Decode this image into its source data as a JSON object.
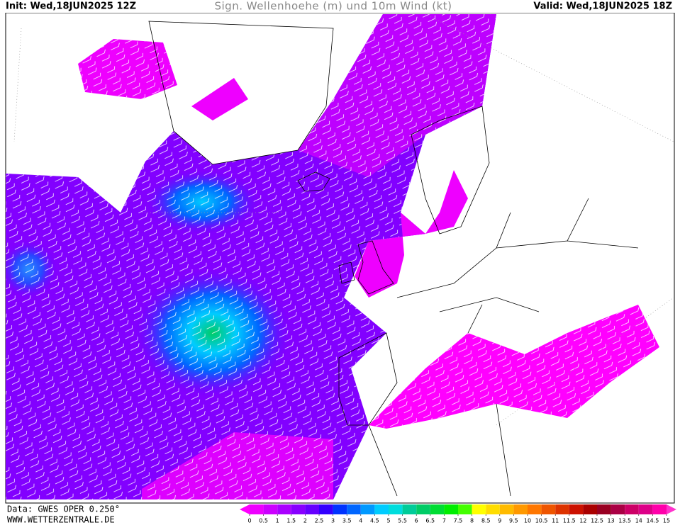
{
  "header": {
    "init": "Init: Wed,18JUN2025 12Z",
    "title": "Sign. Wellenhoehe (m) und 10m Wind (kt)",
    "valid": "Valid: Wed,18JUN2025 18Z"
  },
  "footer": {
    "source": "Data: GWES OPER 0.250°",
    "website": "WWW.WETTERZENTRALE.DE"
  },
  "colorbar": {
    "ticks": [
      0,
      0.5,
      1,
      1.5,
      2,
      2.5,
      3,
      3.5,
      4,
      4.5,
      5,
      5.5,
      6,
      6.5,
      7,
      7.5,
      8,
      8.5,
      9,
      9.5,
      10,
      10.5,
      11,
      11.5,
      12,
      12.5,
      13,
      13.5,
      14,
      14.5,
      15
    ],
    "colors": [
      "#ff00ff",
      "#ee00ff",
      "#cc00ff",
      "#aa00ff",
      "#8800ff",
      "#6600ff",
      "#3300ff",
      "#0033ff",
      "#0066ff",
      "#0099ff",
      "#00ccff",
      "#00dddd",
      "#00cc99",
      "#00cc66",
      "#00dd33",
      "#00ee00",
      "#44ff00",
      "#ffff00",
      "#ffdd00",
      "#ffbb00",
      "#ff9900",
      "#ff7700",
      "#ee5500",
      "#dd3300",
      "#cc1100",
      "#aa0000",
      "#990022",
      "#aa0044",
      "#cc0066",
      "#dd0088",
      "#ff00aa",
      "#ff33cc"
    ]
  }
}
